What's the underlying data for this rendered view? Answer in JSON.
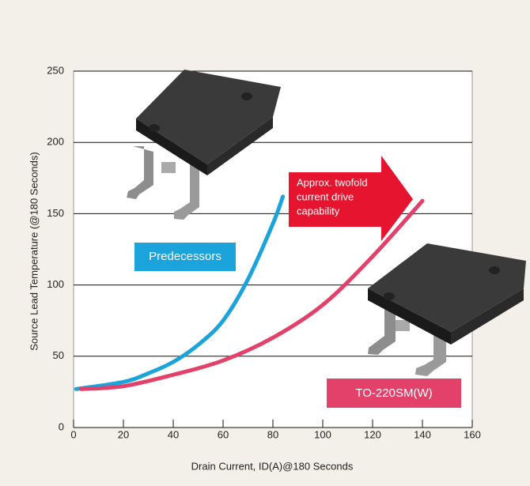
{
  "chart_data": {
    "type": "line",
    "xlabel": "Drain Current, ID(A)@180 Seconds",
    "ylabel": "Source Lead Temperature (@180 Seconds)",
    "annotation": [
      "Approx. twofold",
      "current drive",
      "capability"
    ],
    "xlim": [
      0,
      160
    ],
    "xticks": [
      0,
      20,
      40,
      60,
      80,
      100,
      120,
      140,
      160
    ],
    "ylim": [
      0,
      250
    ],
    "yticks": [
      0,
      50,
      100,
      150,
      200,
      250
    ],
    "grid": true,
    "series": [
      {
        "name": "Predecessors",
        "color": "#1ba3dc",
        "x": [
          1,
          20,
          30,
          40,
          50,
          60,
          70,
          80,
          84
        ],
        "values": [
          27,
          32,
          38,
          46,
          58,
          75,
          104,
          143,
          162
        ]
      },
      {
        "name": "TO-220SM(W)",
        "color": "#e3406a",
        "x": [
          3,
          20,
          40,
          60,
          80,
          100,
          120,
          140
        ],
        "values": [
          27,
          29,
          37,
          47,
          63,
          86,
          120,
          159
        ]
      }
    ]
  }
}
